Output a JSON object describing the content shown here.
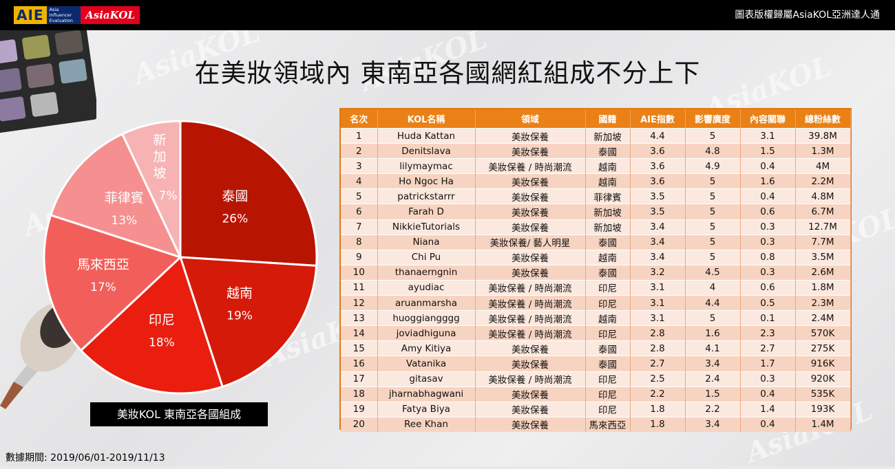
{
  "header": {
    "logo_aie": "AIE",
    "logo_aie_sub": "Asia Influencer Evaluation",
    "logo_asiakol": "AsiaKOL",
    "copyright": "圖表版權歸屬AsiaKOL亞洲達人通"
  },
  "title": "在美妝領域內 東南亞各國網紅組成不分上下",
  "caption": "美妝KOL 東南亞各國組成",
  "source": "數據期間: 2019/06/01-2019/11/13",
  "watermark": "AsiaKOL",
  "colors": {
    "thailand": "#b81402",
    "vietnam": "#d51a0a",
    "indonesia": "#ea1e0e",
    "malaysia": "#f25f5a",
    "philippines": "#f69090",
    "singapore": "#f7b3b3",
    "table_header": "#e98116"
  },
  "chart_data": [
    {
      "type": "pie",
      "title": "美妝KOL 東南亞各國組成",
      "slices": [
        {
          "label": "泰國",
          "value": 26,
          "pct": "26%"
        },
        {
          "label": "越南",
          "value": 19,
          "pct": "19%"
        },
        {
          "label": "印尼",
          "value": 18,
          "pct": "18%"
        },
        {
          "label": "馬來西亞",
          "value": 17,
          "pct": "17%"
        },
        {
          "label": "菲律賓",
          "value": 13,
          "pct": "13%"
        },
        {
          "label": "新加坡",
          "value": 7,
          "pct": "7%"
        }
      ]
    },
    {
      "type": "table",
      "columns": [
        "名次",
        "KOL名稱",
        "領域",
        "國籍",
        "AIE指數",
        "影響廣度",
        "內容關聯",
        "總粉絲數"
      ],
      "rows": [
        [
          "1",
          "Huda Kattan",
          "美妝保養",
          "新加坡",
          "4.4",
          "5",
          "3.1",
          "39.8M"
        ],
        [
          "2",
          "Denitslava",
          "美妝保養",
          "泰國",
          "3.6",
          "4.8",
          "1.5",
          "1.3M"
        ],
        [
          "3",
          "lilymaymac",
          "美妝保養 / 時尚潮流",
          "越南",
          "3.6",
          "4.9",
          "0.4",
          "4M"
        ],
        [
          "4",
          "Ho Ngoc Ha",
          "美妝保養",
          "越南",
          "3.6",
          "5",
          "1.6",
          "2.2M"
        ],
        [
          "5",
          "patrickstarrr",
          "美妝保養",
          "菲律賓",
          "3.5",
          "5",
          "0.4",
          "4.8M"
        ],
        [
          "6",
          "Farah D",
          "美妝保養",
          "新加坡",
          "3.5",
          "5",
          "0.6",
          "6.7M"
        ],
        [
          "7",
          "NikkieTutorials",
          "美妝保養",
          "新加坡",
          "3.4",
          "5",
          "0.3",
          "12.7M"
        ],
        [
          "8",
          "Niana",
          "美妝保養/ 藝人明星",
          "泰國",
          "3.4",
          "5",
          "0.3",
          "7.7M"
        ],
        [
          "9",
          "Chi Pu",
          "美妝保養",
          "越南",
          "3.4",
          "5",
          "0.8",
          "3.5M"
        ],
        [
          "10",
          "thanaerngnin",
          "美妝保養",
          "泰國",
          "3.2",
          "4.5",
          "0.3",
          "2.6M"
        ],
        [
          "11",
          "ayudiac",
          "美妝保養 / 時尚潮流",
          "印尼",
          "3.1",
          "4",
          "0.6",
          "1.8M"
        ],
        [
          "12",
          "aruanmarsha",
          "美妝保養 / 時尚潮流",
          "印尼",
          "3.1",
          "4.4",
          "0.5",
          "2.3M"
        ],
        [
          "13",
          "huoggiangggg",
          "美妝保養 / 時尚潮流",
          "越南",
          "3.1",
          "5",
          "0.1",
          "2.4M"
        ],
        [
          "14",
          "joviadhiguna",
          "美妝保養 / 時尚潮流",
          "印尼",
          "2.8",
          "1.6",
          "2.3",
          "570K"
        ],
        [
          "15",
          "Amy Kitiya",
          "美妝保養",
          "泰國",
          "2.8",
          "4.1",
          "2.7",
          "275K"
        ],
        [
          "16",
          "Vatanika",
          "美妝保養",
          "泰國",
          "2.7",
          "3.4",
          "1.7",
          "916K"
        ],
        [
          "17",
          "gitasav",
          "美妝保養 / 時尚潮流",
          "印尼",
          "2.5",
          "2.4",
          "0.3",
          "920K"
        ],
        [
          "18",
          "jharnabhagwani",
          "美妝保養",
          "印尼",
          "2.2",
          "1.5",
          "0.4",
          "535K"
        ],
        [
          "19",
          "Fatya Biya",
          "美妝保養",
          "印尼",
          "1.8",
          "2.2",
          "1.4",
          "193K"
        ],
        [
          "20",
          "Ree Khan",
          "美妝保養",
          "馬來西亞",
          "1.8",
          "3.4",
          "0.4",
          "1.4M"
        ]
      ]
    }
  ]
}
